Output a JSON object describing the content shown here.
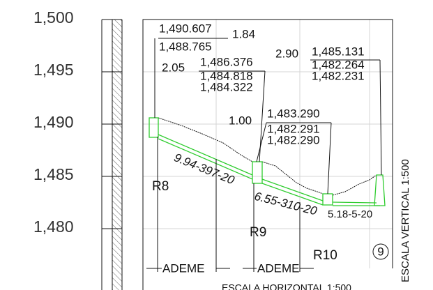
{
  "elevation_axis": {
    "labels": [
      "1,500",
      "1,495",
      "1,490",
      "1,485",
      "1,480"
    ]
  },
  "levels": [
    {
      "top": "1,490.607",
      "depth": "1.84",
      "bottom": "1,488.765"
    },
    {
      "depth": "2.05",
      "top": "1,486.376",
      "middle": "1,484.818",
      "bottom": "1,484.322"
    },
    {
      "depth": "2.90",
      "top": "1,485.131",
      "middle": "1,482.264",
      "bottom": "1,482.231"
    },
    {
      "depth": "1.00",
      "top": "1,483.290",
      "middle": "1,482.291",
      "bottom": "1,482.290"
    }
  ],
  "pipes": [
    "9.94-397-20",
    "6.55-310-20",
    "5.18-5-20"
  ],
  "manholes": [
    "R8",
    "R9",
    "R10"
  ],
  "sheet": "9",
  "ademe": [
    "ADEME",
    "ADEME"
  ],
  "scale_vertical": "ESCALA VERTICAL 1:500",
  "scale_horizontal": "ESCALA HORIZONTAL 1:500"
}
